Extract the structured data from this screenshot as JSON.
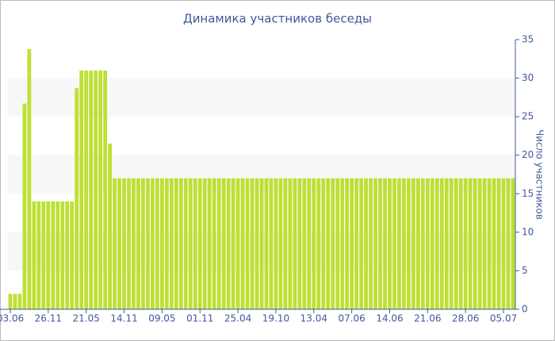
{
  "chart_data": {
    "type": "bar",
    "title": "Динамика участников беседы",
    "y_label": "Число участников",
    "color": "#bde035",
    "ylim": [
      0,
      35
    ],
    "yticks": [
      0,
      5,
      10,
      15,
      20,
      25,
      30,
      35
    ],
    "y_axis_side": "right",
    "banded_grid": true,
    "categories": [
      "03.06",
      null,
      null,
      null,
      null,
      null,
      null,
      null,
      "26.11",
      null,
      null,
      null,
      null,
      null,
      null,
      null,
      "21.05",
      null,
      null,
      null,
      null,
      null,
      null,
      null,
      "14.11",
      null,
      null,
      null,
      null,
      null,
      null,
      null,
      "09.05",
      null,
      null,
      null,
      null,
      null,
      null,
      null,
      "01.11",
      null,
      null,
      null,
      null,
      null,
      null,
      null,
      "25.04",
      null,
      null,
      null,
      null,
      null,
      null,
      null,
      "19.10",
      null,
      null,
      null,
      null,
      null,
      null,
      null,
      "13.04",
      null,
      null,
      null,
      null,
      null,
      null,
      null,
      "07.06",
      null,
      null,
      null,
      null,
      null,
      null,
      null,
      "14.06",
      null,
      null,
      null,
      null,
      null,
      null,
      null,
      "21.06",
      null,
      null,
      null,
      null,
      null,
      null,
      null,
      "28.06",
      null,
      null,
      null,
      null,
      null,
      null,
      null,
      "05.07",
      null,
      null
    ],
    "values": [
      2,
      2,
      2,
      26.7,
      33.8,
      14,
      14,
      14,
      14,
      14,
      14,
      14,
      14,
      14,
      28.7,
      31,
      31,
      31,
      31,
      31,
      31,
      21.5,
      17,
      17,
      17,
      17,
      17,
      17,
      17,
      17,
      17,
      17,
      17,
      17,
      17,
      17,
      17,
      17,
      17,
      17,
      17,
      17,
      17,
      17,
      17,
      17,
      17,
      17,
      17,
      17,
      17,
      17,
      17,
      17,
      17,
      17,
      17,
      17,
      17,
      17,
      17,
      17,
      17,
      17,
      17,
      17,
      17,
      17,
      17,
      17,
      17,
      17,
      17,
      17,
      17,
      17,
      17,
      17,
      17,
      17,
      17,
      17,
      17,
      17,
      17,
      17,
      17,
      17,
      17,
      17,
      17,
      17,
      17,
      17,
      17,
      17,
      17,
      17,
      17,
      17,
      17,
      17,
      17,
      17,
      17,
      17,
      17
    ]
  }
}
